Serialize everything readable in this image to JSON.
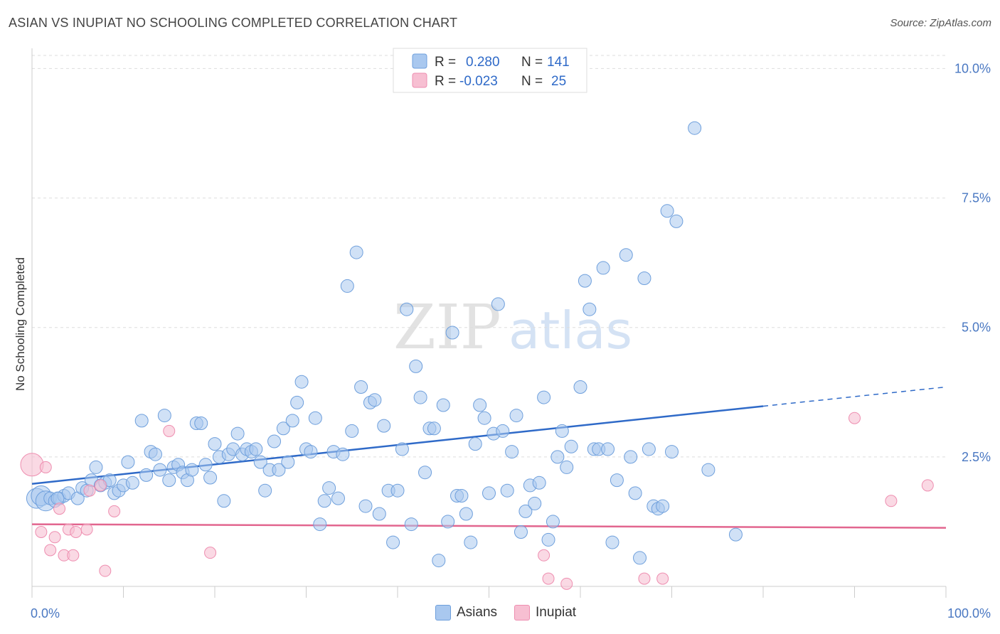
{
  "title": "ASIAN VS INUPIAT NO SCHOOLING COMPLETED CORRELATION CHART",
  "source": "Source: ZipAtlas.com",
  "watermark": "ZIPatlas",
  "colors": {
    "asians_fill": "#a9c8ef",
    "asians_stroke": "#6e9fdc",
    "asians_line": "#2f6ac8",
    "inupiat_fill": "#f7bfd2",
    "inupiat_stroke": "#ee8eb0",
    "inupiat_line": "#e2668f",
    "tick_blue": "#4a78c2",
    "grid": "#dddddd"
  },
  "legend": {
    "r_label": "R =",
    "n_label": "N =",
    "rows": [
      {
        "r": "0.280",
        "n": "141"
      },
      {
        "r": "-0.023",
        "n": "25"
      }
    ]
  },
  "bottom_legend": [
    "Asians",
    "Inupiat"
  ],
  "chart_data": {
    "type": "scatter",
    "title": "ASIAN VS INUPIAT NO SCHOOLING COMPLETED CORRELATION CHART",
    "ylabel": "No Schooling Completed",
    "xlabel": "",
    "xlim": [
      0,
      100
    ],
    "ylim": [
      0,
      10.5
    ],
    "x_ticks": [
      "0.0%",
      "100.0%"
    ],
    "y_ticks": [
      {
        "value": 2.5,
        "label": "2.5%"
      },
      {
        "value": 5.0,
        "label": "5.0%"
      },
      {
        "value": 7.5,
        "label": "7.5%"
      },
      {
        "value": 10.0,
        "label": "10.0%"
      }
    ],
    "grid": true,
    "series": [
      {
        "name": "Asians",
        "r": 0.28,
        "n": 141,
        "trend": {
          "x0": 0,
          "y0": 1.98,
          "x1": 80,
          "y1": 3.48,
          "x_dash_end": 100,
          "y_dash_end": 3.85
        },
        "points": [
          [
            0.5,
            1.7
          ],
          [
            1,
            1.75
          ],
          [
            1.5,
            1.65
          ],
          [
            2,
            1.7
          ],
          [
            2.5,
            1.65
          ],
          [
            3,
            1.7
          ],
          [
            3.5,
            1.75
          ],
          [
            4,
            1.8
          ],
          [
            5,
            1.7
          ],
          [
            5.5,
            1.9
          ],
          [
            6,
            1.85
          ],
          [
            6.5,
            2.05
          ],
          [
            7,
            2.3
          ],
          [
            7.5,
            1.95
          ],
          [
            8,
            2.0
          ],
          [
            8.5,
            2.05
          ],
          [
            9,
            1.8
          ],
          [
            9.5,
            1.85
          ],
          [
            10,
            1.95
          ],
          [
            10.5,
            2.4
          ],
          [
            11,
            2.0
          ],
          [
            12,
            3.2
          ],
          [
            12.5,
            2.15
          ],
          [
            13,
            2.6
          ],
          [
            13.5,
            2.55
          ],
          [
            14,
            2.25
          ],
          [
            14.5,
            3.3
          ],
          [
            15,
            2.05
          ],
          [
            15.5,
            2.3
          ],
          [
            16,
            2.35
          ],
          [
            16.5,
            2.2
          ],
          [
            17,
            2.05
          ],
          [
            17.5,
            2.25
          ],
          [
            18,
            3.15
          ],
          [
            18.5,
            3.15
          ],
          [
            19,
            2.35
          ],
          [
            19.5,
            2.1
          ],
          [
            20,
            2.75
          ],
          [
            20.5,
            2.5
          ],
          [
            21,
            1.65
          ],
          [
            21.5,
            2.55
          ],
          [
            22,
            2.65
          ],
          [
            22.5,
            2.95
          ],
          [
            23,
            2.55
          ],
          [
            23.5,
            2.65
          ],
          [
            24,
            2.6
          ],
          [
            24.5,
            2.65
          ],
          [
            25,
            2.4
          ],
          [
            25.5,
            1.85
          ],
          [
            26,
            2.25
          ],
          [
            26.5,
            2.8
          ],
          [
            27,
            2.25
          ],
          [
            27.5,
            3.05
          ],
          [
            28,
            2.4
          ],
          [
            28.5,
            3.2
          ],
          [
            29,
            3.55
          ],
          [
            29.5,
            3.95
          ],
          [
            30,
            2.65
          ],
          [
            30.5,
            2.6
          ],
          [
            31,
            3.25
          ],
          [
            31.5,
            1.2
          ],
          [
            32,
            1.65
          ],
          [
            32.5,
            1.9
          ],
          [
            33,
            2.6
          ],
          [
            33.5,
            1.7
          ],
          [
            34,
            2.55
          ],
          [
            34.5,
            5.8
          ],
          [
            35,
            3.0
          ],
          [
            35.5,
            6.45
          ],
          [
            36,
            3.85
          ],
          [
            36.5,
            1.55
          ],
          [
            37,
            3.55
          ],
          [
            37.5,
            3.6
          ],
          [
            38,
            1.4
          ],
          [
            38.5,
            3.1
          ],
          [
            39,
            1.85
          ],
          [
            39.5,
            0.85
          ],
          [
            40,
            1.85
          ],
          [
            40.5,
            2.65
          ],
          [
            41,
            5.35
          ],
          [
            41.5,
            1.2
          ],
          [
            42,
            4.25
          ],
          [
            42.5,
            3.65
          ],
          [
            43,
            2.2
          ],
          [
            43.5,
            3.05
          ],
          [
            44,
            3.05
          ],
          [
            44.5,
            0.5
          ],
          [
            45,
            3.5
          ],
          [
            45.5,
            1.25
          ],
          [
            46,
            4.9
          ],
          [
            46.5,
            1.75
          ],
          [
            47,
            1.75
          ],
          [
            47.5,
            1.4
          ],
          [
            48,
            0.85
          ],
          [
            48.5,
            2.75
          ],
          [
            49,
            3.5
          ],
          [
            49.5,
            3.25
          ],
          [
            50,
            1.8
          ],
          [
            50.5,
            2.95
          ],
          [
            51,
            5.45
          ],
          [
            51.5,
            3.0
          ],
          [
            52,
            1.85
          ],
          [
            52.5,
            2.6
          ],
          [
            53,
            3.3
          ],
          [
            53.5,
            1.05
          ],
          [
            54,
            1.45
          ],
          [
            54.5,
            1.95
          ],
          [
            55,
            1.6
          ],
          [
            55.5,
            2.0
          ],
          [
            56,
            3.65
          ],
          [
            56.5,
            0.9
          ],
          [
            57,
            1.25
          ],
          [
            57.5,
            2.5
          ],
          [
            58,
            3.0
          ],
          [
            58.5,
            2.3
          ],
          [
            59,
            2.7
          ],
          [
            60,
            3.85
          ],
          [
            60.5,
            5.9
          ],
          [
            61,
            5.35
          ],
          [
            61.5,
            2.65
          ],
          [
            62,
            2.65
          ],
          [
            62.5,
            6.15
          ],
          [
            63,
            2.65
          ],
          [
            63.5,
            0.85
          ],
          [
            64,
            2.05
          ],
          [
            65,
            6.4
          ],
          [
            65.5,
            2.5
          ],
          [
            66,
            1.8
          ],
          [
            66.5,
            0.55
          ],
          [
            67,
            5.95
          ],
          [
            67.5,
            2.65
          ],
          [
            68,
            1.55
          ],
          [
            68.5,
            1.5
          ],
          [
            69,
            1.55
          ],
          [
            69.5,
            7.25
          ],
          [
            70,
            2.6
          ],
          [
            70.5,
            7.05
          ],
          [
            72.5,
            8.85
          ],
          [
            74,
            2.25
          ],
          [
            77,
            1.0
          ],
          [
            2.8,
            1.7
          ]
        ]
      },
      {
        "name": "Inupiat",
        "r": -0.023,
        "n": 25,
        "trend": {
          "x0": 0,
          "y0": 1.2,
          "x1": 100,
          "y1": 1.13
        },
        "points": [
          [
            0,
            2.35
          ],
          [
            1,
            1.05
          ],
          [
            1.5,
            2.3
          ],
          [
            2,
            0.7
          ],
          [
            2.5,
            0.95
          ],
          [
            3,
            1.5
          ],
          [
            3.5,
            0.6
          ],
          [
            4,
            1.1
          ],
          [
            4.5,
            0.6
          ],
          [
            4.8,
            1.05
          ],
          [
            6,
            1.1
          ],
          [
            6.3,
            1.85
          ],
          [
            7.5,
            1.95
          ],
          [
            8,
            0.3
          ],
          [
            9,
            1.45
          ],
          [
            15,
            3.0
          ],
          [
            19.5,
            0.65
          ],
          [
            56,
            0.6
          ],
          [
            56.5,
            0.15
          ],
          [
            58.5,
            0.05
          ],
          [
            67,
            0.15
          ],
          [
            69,
            0.15
          ],
          [
            90,
            3.25
          ],
          [
            94,
            1.65
          ],
          [
            98,
            1.95
          ]
        ]
      }
    ]
  }
}
